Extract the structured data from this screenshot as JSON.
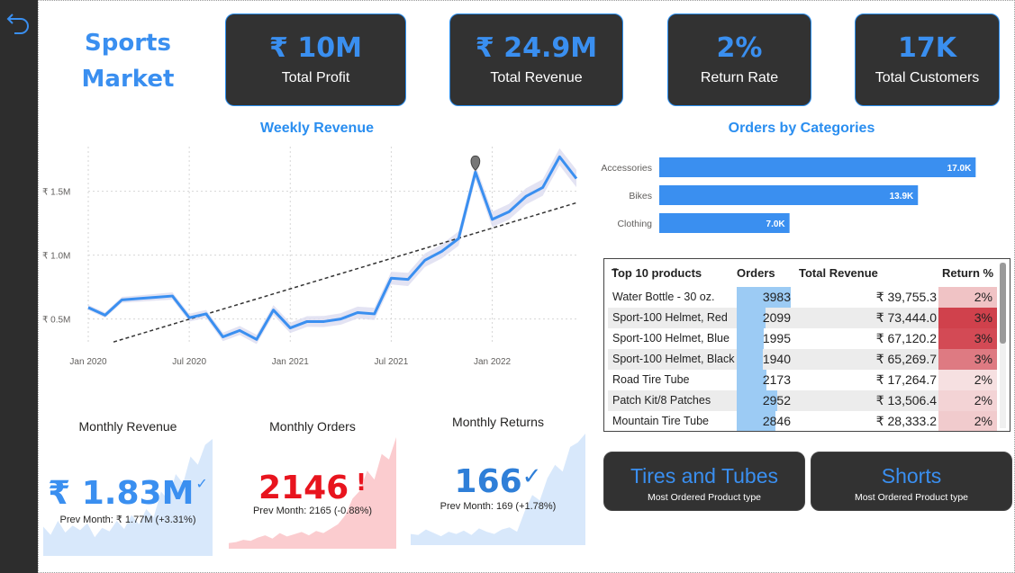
{
  "dashboard": {
    "title_line1": "Sports",
    "title_line2": "Market",
    "back_icon": "undo-arrow-icon"
  },
  "kpis": [
    {
      "value": "₹ 10M",
      "label": "Total Profit"
    },
    {
      "value": "₹ 24.9M",
      "label": "Total Revenue"
    },
    {
      "value": "2%",
      "label": "Return Rate"
    },
    {
      "value": "17K",
      "label": "Total Customers"
    }
  ],
  "weekly_revenue": {
    "title": "Weekly Revenue"
  },
  "orders_by_categories": {
    "title": "Orders by Categories"
  },
  "chart_data": [
    {
      "type": "line",
      "title": "Weekly Revenue",
      "x_ticks": [
        "Jan 2020",
        "Jul 2020",
        "Jan 2021",
        "Jul 2021",
        "Jan 2022"
      ],
      "y_ticks": [
        "₹ 0.5M",
        "₹ 1.0M",
        "₹ 1.5M"
      ],
      "ylim": [
        0.3,
        1.85
      ],
      "series": [
        {
          "values": [
            0.59,
            0.53,
            0.65,
            0.66,
            0.67,
            0.68,
            0.51,
            0.54,
            0.36,
            0.41,
            0.34,
            0.57,
            0.43,
            0.48,
            0.48,
            0.5,
            0.55,
            0.54,
            0.82,
            0.81,
            0.96,
            1.03,
            1.13,
            1.65,
            1.28,
            1.34,
            1.46,
            1.53,
            1.77,
            1.6
          ]
        }
      ],
      "trend_line": {
        "start": 0.32,
        "end": 1.41
      },
      "marker_index": 23,
      "grid": true,
      "color": "#3a8ff0"
    },
    {
      "type": "bar",
      "title": "Orders by Categories",
      "categories": [
        "Accessories",
        "Bikes",
        "Clothing"
      ],
      "values": [
        17.0,
        13.9,
        7.0
      ],
      "data_labels": [
        "17.0K",
        "13.9K",
        "7.0K"
      ],
      "xlim": [
        0,
        18
      ],
      "color": "#3a8ff0"
    },
    {
      "type": "area",
      "title": "Monthly Revenue",
      "values": [
        0.25,
        0.18,
        0.3,
        0.2,
        0.26,
        0.22,
        0.28,
        0.16,
        0.24,
        0.21,
        0.3,
        0.23,
        0.35,
        0.27,
        0.4,
        0.33,
        0.55,
        0.48,
        0.7,
        0.62,
        0.85,
        0.78,
        0.95,
        1.0
      ],
      "color": "#d8e8fb"
    },
    {
      "type": "area",
      "title": "Monthly Orders",
      "values": [
        0.05,
        0.06,
        0.08,
        0.07,
        0.1,
        0.12,
        0.09,
        0.14,
        0.11,
        0.13,
        0.15,
        0.12,
        0.16,
        0.14,
        0.18,
        0.22,
        0.3,
        0.45,
        0.52,
        0.7,
        0.62,
        0.85,
        0.8,
        1.0
      ],
      "color": "#fbcccf"
    },
    {
      "type": "area",
      "title": "Monthly Returns",
      "values": [
        0.1,
        0.09,
        0.14,
        0.11,
        0.08,
        0.12,
        0.1,
        0.13,
        0.09,
        0.15,
        0.12,
        0.1,
        0.14,
        0.16,
        0.12,
        0.3,
        0.45,
        0.4,
        0.6,
        0.72,
        0.66,
        0.88,
        0.92,
        1.0
      ],
      "color": "#d8e8fb"
    }
  ],
  "monthly": {
    "revenue": {
      "title": "Monthly Revenue",
      "value": "₹ 1.83M",
      "indicator": "✓",
      "prev": "Prev Month: ₹ 1.77M (+3.31%)",
      "color": "#3a8ff0"
    },
    "orders": {
      "title": "Monthly Orders",
      "value": "2146",
      "indicator": "!",
      "prev": "Prev Month: 2165 (-0.88%)",
      "color": "#e8141e"
    },
    "returns": {
      "title": "Monthly Returns",
      "value": "166",
      "indicator": "✓",
      "prev": "Prev Month: 169 (+1.78%)",
      "color": "#3a8ff0"
    }
  },
  "top_products": {
    "headers": {
      "product": "Top 10 products",
      "orders": "Orders",
      "revenue": "Total Revenue",
      "return": "Return %"
    },
    "rows": [
      {
        "name": "Water Bottle - 30 oz.",
        "orders": "3983",
        "orders_value": 3983,
        "revenue": "₹ 39,755.3",
        "return": "2%",
        "return_color": "#f0c3c5"
      },
      {
        "name": "Sport-100 Helmet, Red",
        "orders": "2099",
        "orders_value": 2099,
        "revenue": "₹ 73,444.0",
        "return": "3%",
        "return_color": "#d0414c"
      },
      {
        "name": "Sport-100 Helmet, Blue",
        "orders": "1995",
        "orders_value": 1995,
        "revenue": "₹ 67,120.2",
        "return": "3%",
        "return_color": "#d34a55"
      },
      {
        "name": "Sport-100 Helmet, Black",
        "orders": "1940",
        "orders_value": 1940,
        "revenue": "₹ 65,269.7",
        "return": "3%",
        "return_color": "#de7a82"
      },
      {
        "name": "Road Tire Tube",
        "orders": "2173",
        "orders_value": 2173,
        "revenue": "₹ 17,264.7",
        "return": "2%",
        "return_color": "#f6e0e1"
      },
      {
        "name": "Patch Kit/8 Patches",
        "orders": "2952",
        "orders_value": 2952,
        "revenue": "₹ 13,506.4",
        "return": "2%",
        "return_color": "#f3d3d5"
      },
      {
        "name": "Mountain Tire Tube",
        "orders": "2846",
        "orders_value": 2846,
        "revenue": "₹ 28,333.2",
        "return": "2%",
        "return_color": "#f1cbcd"
      }
    ]
  },
  "product_types": [
    {
      "value": "Tires and Tubes",
      "label": "Most Ordered Product type"
    },
    {
      "value": "Shorts",
      "label": "Most Ordered Product type"
    }
  ]
}
